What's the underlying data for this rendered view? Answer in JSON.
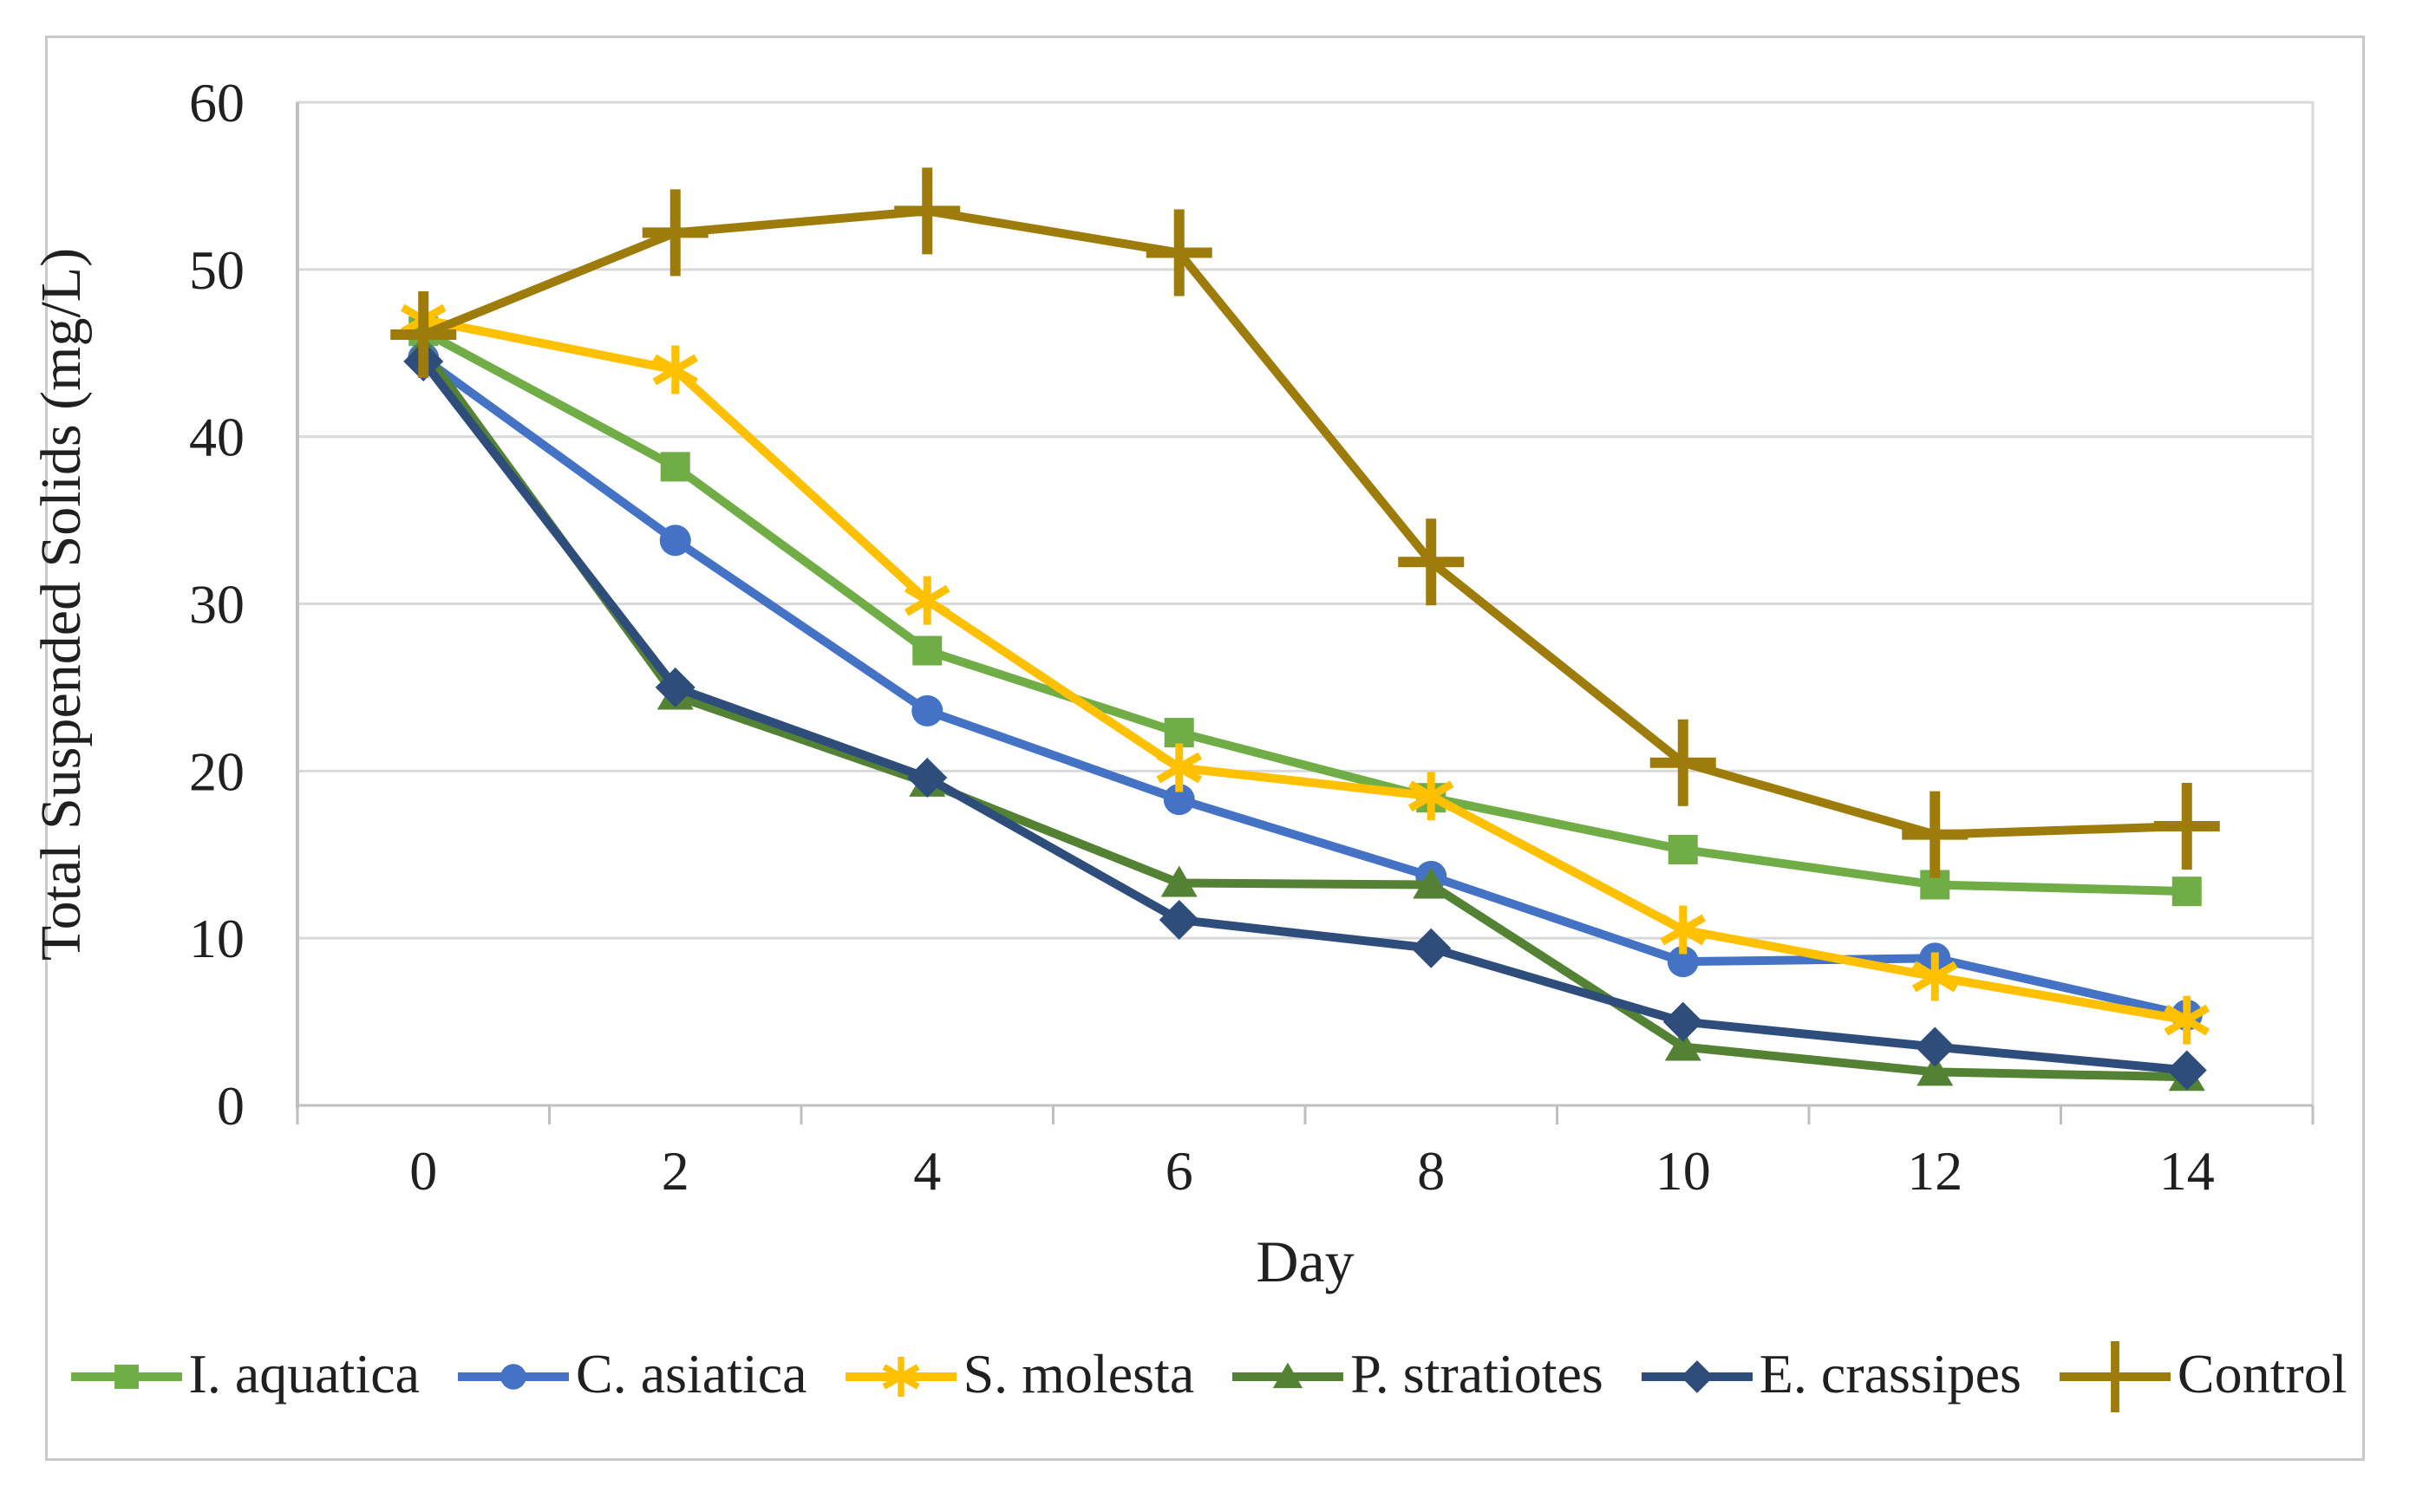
{
  "figure": {
    "background": "#FFFFFF",
    "border_color": "#C9C9C9"
  },
  "chart_data": {
    "type": "line",
    "title": "",
    "xlabel": "Day",
    "ylabel": "Total Suspended Solids (mg/L)",
    "categories": [
      0,
      2,
      4,
      6,
      8,
      10,
      12,
      14
    ],
    "y_ticks": [
      0,
      10,
      20,
      30,
      40,
      50,
      60
    ],
    "ylim": [
      0,
      60
    ],
    "grid": "horizontal-major",
    "legend_position": "bottom",
    "axis_color": "#BFBFBF",
    "gridline_color": "#D9D9D9",
    "text_color": "#202020",
    "series": [
      {
        "name": "I. aquatica",
        "color": "#70AD47",
        "marker": "square",
        "values": [
          46.3,
          38.2,
          27.2,
          22.3,
          18.4,
          15.3,
          13.2,
          12.8
        ]
      },
      {
        "name": "C. asiatica",
        "color": "#4472C4",
        "marker": "circle",
        "values": [
          44.7,
          33.8,
          23.6,
          18.3,
          13.7,
          8.6,
          8.8,
          5.4
        ]
      },
      {
        "name": "S. molesta",
        "color": "#FFC000",
        "marker": "asterisk",
        "values": [
          47.0,
          44.0,
          30.2,
          20.2,
          18.5,
          10.5,
          7.7,
          5.1
        ]
      },
      {
        "name": "P. stratiotes",
        "color": "#548235",
        "marker": "triangle",
        "values": [
          45.2,
          24.5,
          19.3,
          13.3,
          13.2,
          3.5,
          2.0,
          1.7
        ]
      },
      {
        "name": "E. crassipes",
        "color": "#2E4D7B",
        "marker": "diamond",
        "values": [
          44.5,
          25.0,
          19.6,
          11.1,
          9.4,
          5.0,
          3.5,
          2.1
        ]
      },
      {
        "name": "Control",
        "color": "#9E7C0C",
        "marker": "plus",
        "values": [
          46.1,
          52.2,
          53.5,
          51.0,
          32.5,
          20.5,
          16.2,
          16.7
        ]
      }
    ]
  }
}
